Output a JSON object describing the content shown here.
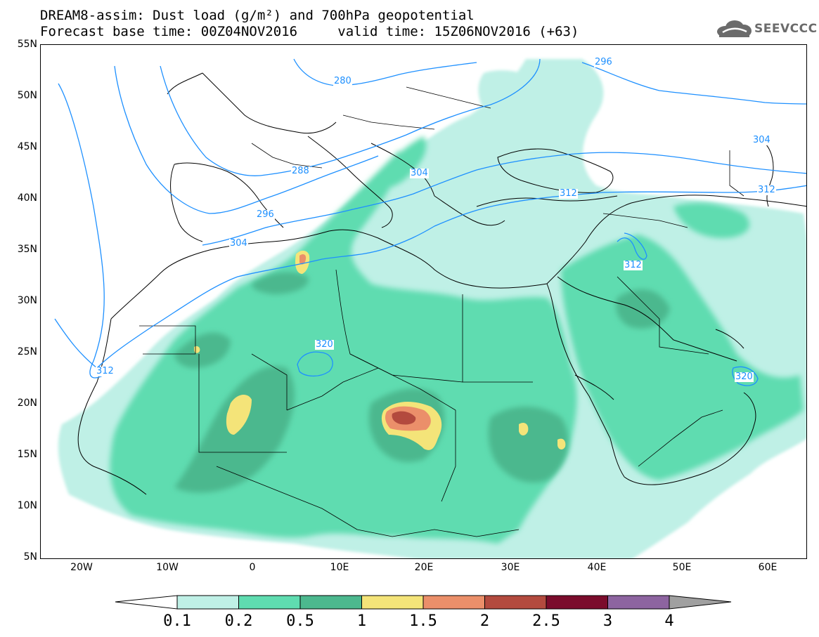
{
  "header": {
    "title_line1": "DREAM8-assim: Dust load (g/m²) and 700hPa geopotential",
    "base_time": "Forecast base time: 00Z04NOV2016",
    "valid_time": "valid time: 15Z06NOV2016 (+63)"
  },
  "logo": {
    "icon": "cloud-icon",
    "text": "SEEVCCC"
  },
  "axes": {
    "lat_labels": [
      "55N",
      "50N",
      "45N",
      "40N",
      "35N",
      "30N",
      "25N",
      "20N",
      "15N",
      "10N",
      "5N"
    ],
    "lon_labels": [
      "20W",
      "10W",
      "0",
      "10E",
      "20E",
      "30E",
      "40E",
      "50E",
      "60E"
    ]
  },
  "contours": {
    "color": "#1e90ff",
    "labels": [
      "280",
      "288",
      "296",
      "296",
      "304",
      "304",
      "304",
      "312",
      "312",
      "312",
      "312",
      "320",
      "320"
    ]
  },
  "colorbar": {
    "colors": [
      "#bff0e6",
      "#5fdcb0",
      "#4cb88e",
      "#f4e479",
      "#eb8f6a",
      "#b34a3e",
      "#7b0c2c",
      "#8d64a0"
    ],
    "labels": [
      "0.1",
      "0.2",
      "0.5",
      "1",
      "1.5",
      "2",
      "2.5",
      "3",
      "4"
    ],
    "under_color": "#ffffff",
    "over_color": "#a0a0a0"
  }
}
